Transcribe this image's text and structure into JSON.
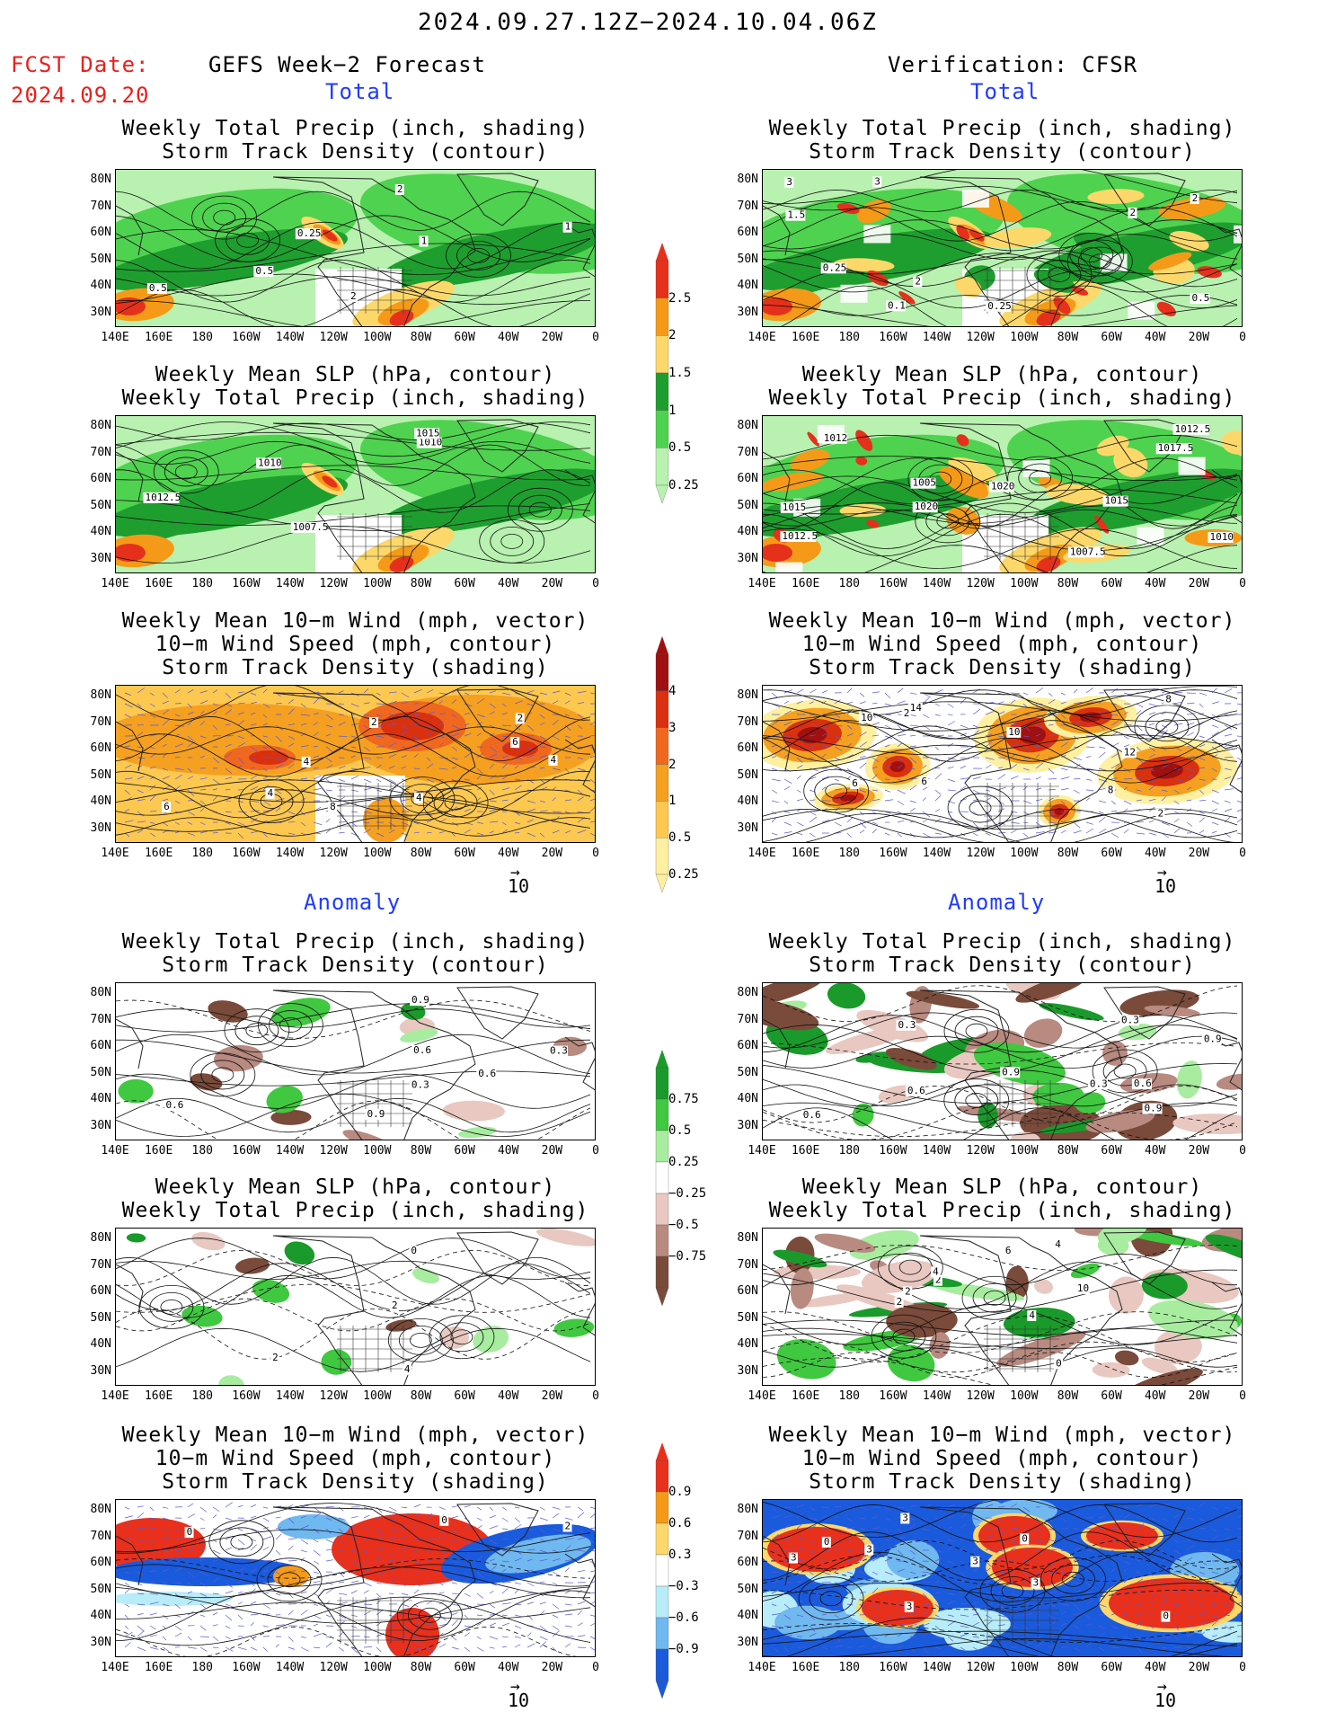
{
  "header": {
    "date_range": "2024.09.27.12Z−2024.10.04.06Z",
    "fcst_label": "FCST Date:",
    "fcst_date": "2024.09.20",
    "left_title": "GEFS Week−2 Forecast",
    "right_title": "Verification: CFSR",
    "total_label": "Total",
    "anomaly_label": "Anomaly"
  },
  "titles": {
    "precip_track": [
      "Weekly Total Precip (inch, shading)",
      "Storm Track Density (contour)"
    ],
    "slp_precip": [
      "Weekly Mean SLP (hPa, contour)",
      "Weekly Total Precip (inch, shading)"
    ],
    "wind_track": [
      "Weekly Mean 10−m Wind (mph, vector)",
      "10−m Wind Speed (mph, contour)",
      "Storm Track Density (shading)"
    ]
  },
  "axes": {
    "lat_labels": [
      "80N",
      "70N",
      "60N",
      "50N",
      "40N",
      "30N"
    ],
    "lon_labels": [
      "140E",
      "160E",
      "180",
      "160W",
      "140W",
      "120W",
      "100W",
      "80W",
      "60W",
      "40W",
      "20W",
      "0"
    ]
  },
  "colorbars": {
    "total_precip": {
      "labels": [
        "2.5",
        "2",
        "1.5",
        "1",
        "0.5",
        "0.25"
      ],
      "colors": [
        "#e5301c",
        "#f59a18",
        "#fcd86b",
        "#1e9e2f",
        "#4fd24f",
        "#b8f1b0"
      ]
    },
    "total_track": {
      "labels": [
        "4",
        "3",
        "2",
        "1",
        "0.5",
        "0.25"
      ],
      "colors": [
        "#a01010",
        "#d9300f",
        "#f06820",
        "#f5a020",
        "#fcc850",
        "#fdf0a0"
      ]
    },
    "anom_precip": {
      "labels": [
        "0.75",
        "0.5",
        "0.25",
        "−0.25",
        "−0.5",
        "−0.75"
      ],
      "colors": [
        "#1a9a2a",
        "#40c840",
        "#a8eca0",
        "#ffffff",
        "#e8c8c0",
        "#b88a80",
        "#7a4a3a"
      ]
    },
    "anom_track": {
      "labels": [
        "0.9",
        "0.6",
        "0.3",
        "−0.3",
        "−0.6",
        "−0.9"
      ],
      "colors": [
        "#e8301c",
        "#f59a18",
        "#fcd86b",
        "#ffffff",
        "#b8ecf8",
        "#70b8f0",
        "#1a5adc"
      ]
    }
  },
  "vector_reference": "10",
  "contour_labels": {
    "p1": [
      "2",
      "2",
      "0.5",
      "1",
      "1",
      "0.5",
      "0.25"
    ],
    "p2": [
      "1010",
      "1012.5",
      "1007.5",
      "1010",
      "1015"
    ],
    "p3": [
      "4",
      "2",
      "8",
      "4",
      "4",
      "6",
      "2",
      "4",
      "6"
    ],
    "p4": [
      "0.3",
      "0.6",
      "0.9",
      "0.6",
      "0.3",
      "0.6",
      "0.9"
    ],
    "p5": [
      "2",
      "2",
      "4",
      "0"
    ],
    "p6": [
      "2",
      "0",
      "0"
    ],
    "q1": [
      "2",
      "0.25",
      "3",
      "2",
      "1.5",
      "0.5",
      "0.1",
      "0.25",
      "3",
      "2"
    ],
    "q2": [
      "1020",
      "1015",
      "1012",
      "1005",
      "1007.5",
      "1017.5",
      "1012.5",
      "1010",
      "1015",
      "1012.5",
      "1020"
    ],
    "q3": [
      "6",
      "10",
      "10",
      "14",
      "6",
      "12",
      "8",
      "8",
      "2",
      "2"
    ],
    "q4": [
      "0.9",
      "0.6",
      "0.3",
      "0.6",
      "0.9",
      "0.3",
      "0.9",
      "0.3",
      "0.6"
    ],
    "q5": [
      "6",
      "4",
      "2",
      "2",
      "4",
      "0",
      "2",
      "10",
      "4"
    ],
    "q6": [
      "3",
      "0",
      "3",
      "3",
      "3",
      "0",
      "3",
      "3",
      "0"
    ]
  }
}
